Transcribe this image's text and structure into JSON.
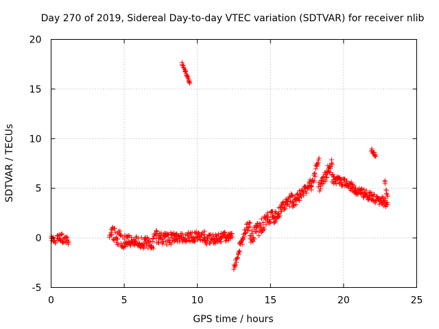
{
  "chart_data": {
    "type": "scatter",
    "title": "Day 270 of 2019, Sidereal Day-to-day VTEC variation (SDTVAR) for receiver nlib",
    "xlabel": "GPS time / hours",
    "ylabel": "SDTVAR / TECUs",
    "xlim": [
      0,
      25
    ],
    "ylim": [
      -5,
      20
    ],
    "xticks": [
      "0",
      "5",
      "10",
      "15",
      "20",
      "25"
    ],
    "yticks": [
      "-5",
      "0",
      "5",
      "10",
      "15",
      "20"
    ],
    "grid": true,
    "marker": "plus",
    "color": "#ff0000",
    "segments": [
      {
        "x0": 0.0,
        "x1": 0.3,
        "y0": 0.0,
        "y1": -0.3,
        "spread": 0.6
      },
      {
        "x0": 0.4,
        "x1": 1.2,
        "y0": 0.2,
        "y1": -0.3,
        "spread": 0.9
      },
      {
        "x0": 4.0,
        "x1": 5.0,
        "y0": 0.5,
        "y1": -0.3,
        "spread": 1.6
      },
      {
        "x0": 5.0,
        "x1": 7.0,
        "y0": -0.3,
        "y1": -0.6,
        "spread": 1.2
      },
      {
        "x0": 7.0,
        "x1": 8.5,
        "y0": 0.2,
        "y1": -0.2,
        "spread": 1.4
      },
      {
        "x0": 8.5,
        "x1": 10.5,
        "y0": 0.0,
        "y1": 0.2,
        "spread": 1.0
      },
      {
        "x0": 8.95,
        "x1": 9.5,
        "y0": 17.6,
        "y1": 15.6,
        "spread": 0.2
      },
      {
        "x0": 10.5,
        "x1": 12.4,
        "y0": -0.2,
        "y1": 0.2,
        "spread": 1.0
      },
      {
        "x0": 12.5,
        "x1": 12.9,
        "y0": -3.0,
        "y1": -1.2,
        "spread": 0.4
      },
      {
        "x0": 12.9,
        "x1": 13.6,
        "y0": -0.5,
        "y1": 1.5,
        "spread": 1.2
      },
      {
        "x0": 13.6,
        "x1": 15.2,
        "y0": 0.0,
        "y1": 2.5,
        "spread": 1.4
      },
      {
        "x0": 15.2,
        "x1": 16.5,
        "y0": 2.0,
        "y1": 4.0,
        "spread": 1.2
      },
      {
        "x0": 16.5,
        "x1": 17.8,
        "y0": 3.5,
        "y1": 5.5,
        "spread": 1.0
      },
      {
        "x0": 17.8,
        "x1": 18.3,
        "y0": 5.0,
        "y1": 8.0,
        "spread": 0.8
      },
      {
        "x0": 18.3,
        "x1": 19.2,
        "y0": 5.0,
        "y1": 7.5,
        "spread": 1.2
      },
      {
        "x0": 19.2,
        "x1": 20.8,
        "y0": 6.0,
        "y1": 5.0,
        "spread": 1.0
      },
      {
        "x0": 20.8,
        "x1": 23.0,
        "y0": 4.8,
        "y1": 3.5,
        "spread": 0.9
      },
      {
        "x0": 21.9,
        "x1": 22.2,
        "y0": 8.9,
        "y1": 8.2,
        "spread": 0.3
      },
      {
        "x0": 22.8,
        "x1": 23.0,
        "y0": 5.8,
        "y1": 4.0,
        "spread": 0.5
      }
    ]
  }
}
